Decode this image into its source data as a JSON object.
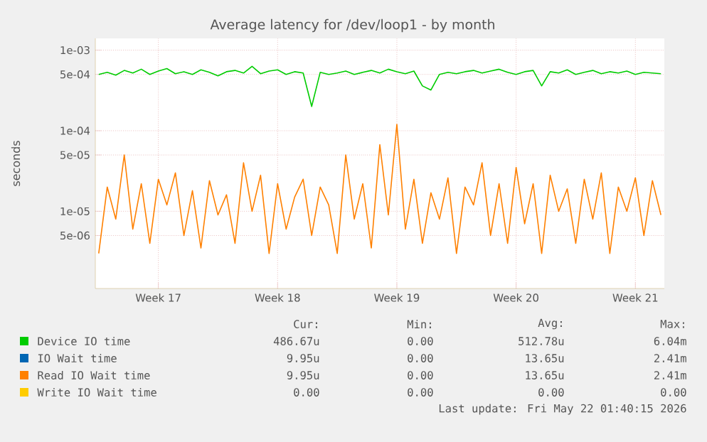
{
  "chart_data": {
    "type": "line",
    "title": "Average latency for /dev/loop1 - by month",
    "ylabel": "seconds",
    "log": "y",
    "grid": true,
    "legend": "bottom",
    "categories": [
      null,
      null,
      null,
      null,
      null,
      null,
      null,
      "Week 17",
      null,
      null,
      null,
      null,
      null,
      null,
      null,
      null,
      null,
      null,
      null,
      null,
      null,
      "Week 18",
      null,
      null,
      null,
      null,
      null,
      null,
      null,
      null,
      null,
      null,
      null,
      null,
      null,
      "Week 19",
      null,
      null,
      null,
      null,
      null,
      null,
      null,
      null,
      null,
      null,
      null,
      null,
      null,
      "Week 20",
      null,
      null,
      null,
      null,
      null,
      null,
      null,
      null,
      null,
      null,
      null,
      null,
      null,
      "Week 21",
      null,
      null,
      null
    ],
    "ylim": [
      1.1e-06,
      0.0014
    ],
    "yticks": [
      {
        "value": 0.001,
        "label": "1e-03"
      },
      {
        "value": 0.0005,
        "label": "5e-04"
      },
      {
        "value": 0.0001,
        "label": "1e-04"
      },
      {
        "value": 5e-05,
        "label": "5e-05"
      },
      {
        "value": 1e-05,
        "label": "1e-05"
      },
      {
        "value": 5e-06,
        "label": "5e-06"
      }
    ],
    "series": [
      {
        "name": "Device IO time",
        "color": "#00cc00",
        "values": [
          0.0005,
          0.00053,
          0.00049,
          0.00056,
          0.00052,
          0.00058,
          0.0005,
          0.00055,
          0.00059,
          0.00051,
          0.00054,
          0.0005,
          0.00057,
          0.00053,
          0.00048,
          0.00054,
          0.00056,
          0.00052,
          0.00063,
          0.00051,
          0.00055,
          0.00057,
          0.0005,
          0.00054,
          0.00052,
          0.0002,
          0.00053,
          0.0005,
          0.00052,
          0.00055,
          0.0005,
          0.00053,
          0.00056,
          0.00052,
          0.00058,
          0.00054,
          0.00051,
          0.00055,
          0.00036,
          0.00032,
          0.0005,
          0.00053,
          0.00051,
          0.00054,
          0.00056,
          0.00052,
          0.00055,
          0.00058,
          0.00053,
          0.0005,
          0.00054,
          0.00056,
          0.00036,
          0.00054,
          0.00052,
          0.00057,
          0.0005,
          0.00053,
          0.00056,
          0.00051,
          0.00054,
          0.00052,
          0.00055,
          0.0005,
          0.00053,
          0.00052,
          0.00051
        ]
      },
      {
        "name": "IO Wait time",
        "color": "#0066b3",
        "values": [
          null,
          null,
          null,
          null,
          null,
          null,
          null,
          null,
          null,
          null,
          null,
          null,
          null,
          null,
          null,
          null,
          null,
          null,
          null,
          null,
          null,
          null,
          null,
          null,
          null,
          null,
          null,
          null,
          null,
          null,
          null,
          null,
          null,
          null,
          null,
          null,
          null,
          null,
          null,
          null,
          null,
          null,
          null,
          null,
          null,
          null,
          null,
          null,
          null,
          null,
          null,
          null,
          null,
          null,
          null,
          null,
          null,
          null,
          null,
          null,
          null,
          null,
          null,
          null,
          null,
          null,
          null
        ]
      },
      {
        "name": "Read IO Wait time",
        "color": "#ff8000",
        "values": [
          3e-06,
          2e-05,
          8e-06,
          5e-05,
          6e-06,
          2.2e-05,
          4e-06,
          2.5e-05,
          1.2e-05,
          3e-05,
          5e-06,
          1.8e-05,
          3.5e-06,
          2.4e-05,
          9e-06,
          1.6e-05,
          4e-06,
          4e-05,
          1e-05,
          2.8e-05,
          3e-06,
          2.2e-05,
          6e-06,
          1.5e-05,
          2.5e-05,
          5e-06,
          2e-05,
          1.2e-05,
          3e-06,
          5e-05,
          8e-06,
          2.2e-05,
          3.5e-06,
          6.7e-05,
          9e-06,
          0.00012,
          6e-06,
          2.5e-05,
          4e-06,
          1.7e-05,
          8e-06,
          2.6e-05,
          3e-06,
          2e-05,
          1.2e-05,
          4e-05,
          5e-06,
          2.2e-05,
          4e-06,
          3.5e-05,
          7e-06,
          2.2e-05,
          3e-06,
          2.8e-05,
          1e-05,
          1.9e-05,
          4e-06,
          2.5e-05,
          8e-06,
          3e-05,
          3e-06,
          2e-05,
          1e-05,
          2.6e-05,
          5e-06,
          2.4e-05,
          9e-06
        ]
      },
      {
        "name": "Write IO Wait time",
        "color": "#ffcc00",
        "values": [
          null,
          null,
          null,
          null,
          null,
          null,
          null,
          null,
          null,
          null,
          null,
          null,
          null,
          null,
          null,
          null,
          null,
          null,
          null,
          null,
          null,
          null,
          null,
          null,
          null,
          null,
          null,
          null,
          null,
          null,
          null,
          null,
          null,
          null,
          null,
          null,
          null,
          null,
          null,
          null,
          null,
          null,
          null,
          null,
          null,
          null,
          null,
          null,
          null,
          null,
          null,
          null,
          null,
          null,
          null,
          null,
          null,
          null,
          null,
          null,
          null,
          null,
          null,
          null,
          null,
          null,
          null
        ]
      }
    ],
    "annotations": [
      "Cur:",
      "Min:",
      "Avg:",
      "Max:",
      "486.67u",
      "0.00",
      "512.78u",
      "6.04m",
      "9.95u",
      "0.00",
      "13.65u",
      "2.41m",
      "9.95u",
      "0.00",
      "13.65u",
      "2.41m",
      "0.00",
      "0.00",
      "0.00",
      "0.00",
      "Last update: Fri May 22 01:40:15 2026"
    ]
  }
}
